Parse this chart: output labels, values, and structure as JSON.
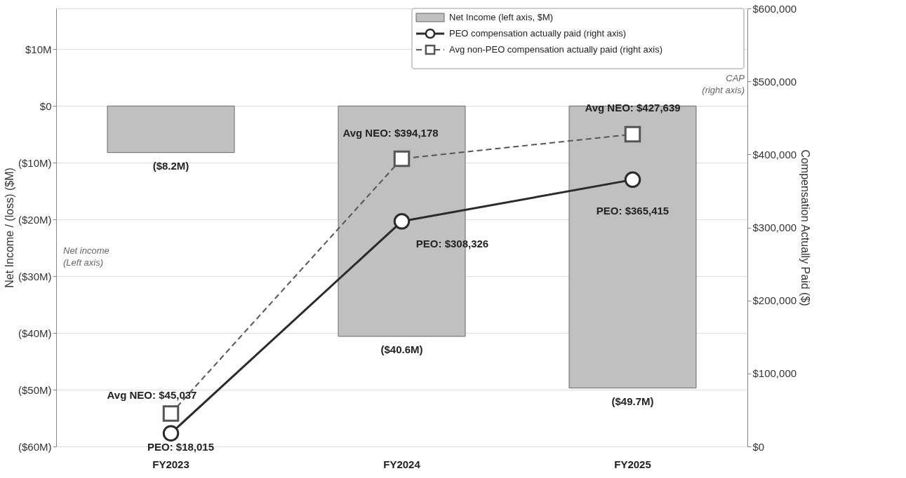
{
  "chart_data": {
    "type": "bar",
    "categories": [
      "FY2023",
      "FY2024",
      "FY2025"
    ],
    "ylabel": "Net Income / (loss) ($M)",
    "y2label": "Compensation Actually Paid ($)",
    "ylim": [
      -60,
      17.2
    ],
    "yticks": [
      {
        "value": -60,
        "label": "($60M)"
      },
      {
        "value": -50,
        "label": "($50M)"
      },
      {
        "value": -40,
        "label": "($40M)"
      },
      {
        "value": -30,
        "label": "($30M)"
      },
      {
        "value": -20,
        "label": "($20M)"
      },
      {
        "value": -10,
        "label": "($10M)"
      },
      {
        "value": 0,
        "label": "$0"
      },
      {
        "value": 10,
        "label": "$10M"
      }
    ],
    "y2lim": [
      0,
      600000
    ],
    "y2ticks": [
      {
        "value": 0,
        "label": "$0"
      },
      {
        "value": 100000,
        "label": "$100,000"
      },
      {
        "value": 200000,
        "label": "$200,000"
      },
      {
        "value": 300000,
        "label": "$300,000"
      },
      {
        "value": 400000,
        "label": "$400,000"
      },
      {
        "value": 500000,
        "label": "$500,000"
      },
      {
        "value": 600000,
        "label": "$600,000"
      }
    ],
    "grid": "y",
    "legend": "top right",
    "series": [
      {
        "name": "Net Income (left axis, $M)",
        "color": "#c0c0c0",
        "values": [
          -8.2,
          -40.6,
          -49.7
        ],
        "value_labels": [
          "($8.2M)",
          "($40.6M)",
          "($49.7M)"
        ]
      },
      {
        "name": "PEO compensation actually paid (right axis)",
        "type": "line",
        "axis": "y2",
        "color": "#2b2b2b",
        "marker": "circle",
        "line_style": "solid",
        "values": [
          18015,
          308326,
          365415
        ],
        "value_labels": [
          "PEO: $18,015",
          "PEO: $308,326",
          "PEO: $365,415"
        ]
      },
      {
        "name": "Avg non-PEO compensation actually paid (right axis)",
        "type": "line",
        "axis": "y2",
        "color": "#555555",
        "marker": "square",
        "line_style": "dashed",
        "values": [
          45037,
          394178,
          427639
        ],
        "value_labels": [
          "Avg NEO: $45,037",
          "Avg NEO: $394,178",
          "Avg NEO: $427,639"
        ]
      }
    ],
    "annotations": [
      "Net income\n(Left axis)",
      "CAP\n(right axis)"
    ]
  }
}
